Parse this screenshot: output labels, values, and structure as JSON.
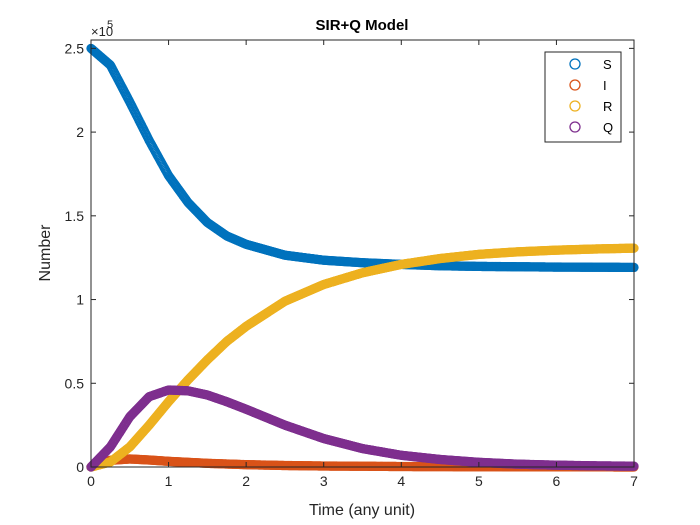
{
  "chart_data": {
    "type": "scatter",
    "title": "SIR+Q Model",
    "xlabel": "Time (any unit)",
    "ylabel": "Number",
    "xlim": [
      0,
      7
    ],
    "ylim": [
      0,
      2.55
    ],
    "y_multiplier": {
      "base": "×10",
      "exponent": "5"
    },
    "x_ticks": [
      "0",
      "1",
      "2",
      "3",
      "4",
      "5",
      "6",
      "7"
    ],
    "y_ticks": [
      "0",
      "0.5",
      "1",
      "1.5",
      "2",
      "2.5"
    ],
    "grid": false,
    "legend_position": "top-right",
    "marker": "circle-open",
    "series": [
      {
        "name": "S",
        "color": "#0072BD",
        "x": [
          0,
          0.25,
          0.5,
          0.75,
          1,
          1.25,
          1.5,
          1.75,
          2,
          2.5,
          3,
          3.5,
          4,
          4.5,
          5,
          5.5,
          6,
          6.5,
          7
        ],
        "y": [
          2.5,
          2.4,
          2.18,
          1.95,
          1.74,
          1.58,
          1.46,
          1.38,
          1.33,
          1.265,
          1.235,
          1.22,
          1.21,
          1.202,
          1.198,
          1.196,
          1.194,
          1.193,
          1.192
        ]
      },
      {
        "name": "I",
        "color": "#D95319",
        "x": [
          0,
          0.25,
          0.5,
          0.75,
          1,
          1.5,
          2,
          2.5,
          3,
          4,
          5,
          6,
          7
        ],
        "y": [
          0,
          0.04,
          0.048,
          0.042,
          0.034,
          0.022,
          0.014,
          0.009,
          0.006,
          0.003,
          0.0015,
          0.0008,
          0.0004
        ]
      },
      {
        "name": "R",
        "color": "#EDB120",
        "x": [
          0,
          0.25,
          0.5,
          0.75,
          1,
          1.25,
          1.5,
          1.75,
          2,
          2.5,
          3,
          3.5,
          4,
          4.5,
          5,
          5.5,
          6,
          6.5,
          7
        ],
        "y": [
          0,
          0.03,
          0.12,
          0.25,
          0.39,
          0.52,
          0.64,
          0.75,
          0.84,
          0.99,
          1.09,
          1.16,
          1.21,
          1.245,
          1.27,
          1.285,
          1.295,
          1.302,
          1.307
        ]
      },
      {
        "name": "Q",
        "color": "#7E2F8E",
        "x": [
          0,
          0.25,
          0.5,
          0.75,
          1,
          1.25,
          1.5,
          1.75,
          2,
          2.5,
          3,
          3.5,
          4,
          4.5,
          5,
          5.5,
          6,
          6.5,
          7
        ],
        "y": [
          0,
          0.12,
          0.3,
          0.42,
          0.46,
          0.455,
          0.43,
          0.39,
          0.345,
          0.25,
          0.17,
          0.11,
          0.07,
          0.045,
          0.028,
          0.017,
          0.011,
          0.007,
          0.005
        ]
      }
    ]
  }
}
